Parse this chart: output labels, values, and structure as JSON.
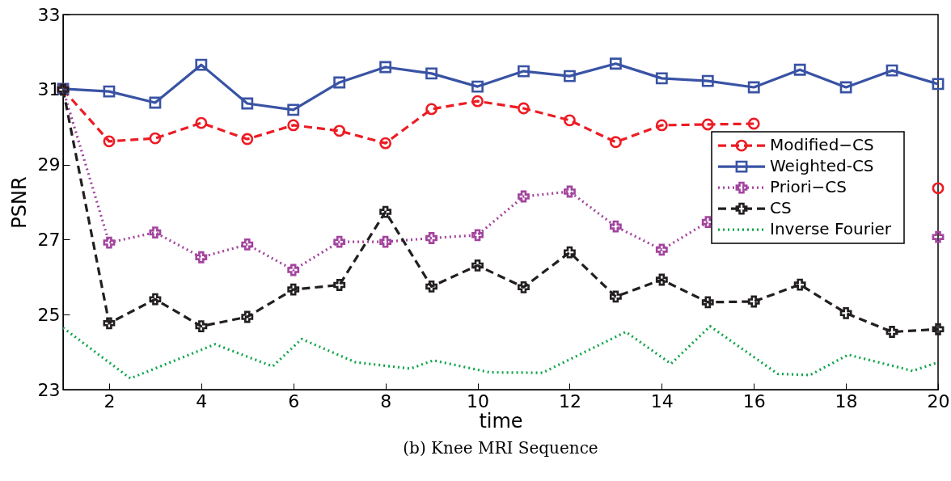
{
  "chart_data": {
    "type": "line",
    "title": "(b) Knee MRI Sequence",
    "xlabel": "time",
    "ylabel": "PSNR",
    "x": [
      1,
      2,
      3,
      4,
      5,
      6,
      7,
      8,
      9,
      10,
      11,
      12,
      13,
      14,
      15,
      16,
      17,
      18,
      19,
      20
    ],
    "xlim": [
      1,
      20
    ],
    "xticks": [
      2,
      4,
      6,
      8,
      10,
      12,
      14,
      16,
      18,
      20
    ],
    "ylim": [
      23,
      33
    ],
    "yticks": [
      23,
      25,
      27,
      29,
      31,
      33
    ],
    "grid": false,
    "legend": "right",
    "series": [
      {
        "name": "Modified−CS",
        "color": "#ed1c24",
        "marker": "circle",
        "line_style": "dashed",
        "values": [
          31.0,
          29.62,
          29.7,
          30.11,
          29.68,
          30.05,
          29.9,
          29.57,
          30.48,
          30.69,
          30.5,
          30.18,
          29.6,
          30.05,
          30.07,
          30.09,
          null,
          null,
          null,
          28.37
        ]
      },
      {
        "name": "Weighted-CS",
        "color": "#3953a4",
        "marker": "square",
        "line_style": "solid",
        "values": [
          31.02,
          30.95,
          30.65,
          31.66,
          30.63,
          30.46,
          31.19,
          31.6,
          31.43,
          31.08,
          31.49,
          31.36,
          31.69,
          31.3,
          31.23,
          31.06,
          31.53,
          31.06,
          31.51,
          31.15
        ]
      },
      {
        "name": "Priori−CS",
        "color": "#a3449e",
        "marker": "cross",
        "line_style": "dotted",
        "values": [
          31.0,
          26.92,
          27.19,
          26.53,
          26.87,
          26.19,
          26.94,
          26.94,
          27.04,
          27.12,
          28.15,
          28.28,
          27.35,
          26.73,
          27.47,
          null,
          null,
          null,
          null,
          27.07
        ]
      },
      {
        "name": "CS",
        "color": "#231f20",
        "marker": "cross",
        "line_style": "dashed",
        "values": [
          31.0,
          24.77,
          25.41,
          24.69,
          24.94,
          25.67,
          25.79,
          27.74,
          25.75,
          26.31,
          25.73,
          26.66,
          25.48,
          25.93,
          25.33,
          25.35,
          25.8,
          25.04,
          24.54,
          24.61
        ]
      },
      {
        "name": "Inverse Fourier",
        "color": "#10a54a",
        "marker": "none",
        "line_style": "dotted",
        "x": [
          1,
          2.46,
          4.3,
          5.55,
          6.18,
          7.35,
          8.54,
          9.04,
          10.27,
          11.41,
          13.22,
          14.2,
          15.05,
          16.52,
          17.22,
          18.05,
          19.45,
          20
        ],
        "values": [
          24.65,
          23.3,
          24.21,
          23.62,
          24.35,
          23.73,
          23.56,
          23.78,
          23.46,
          23.45,
          24.54,
          23.69,
          24.69,
          23.42,
          23.39,
          23.93,
          23.5,
          23.73
        ]
      }
    ]
  }
}
